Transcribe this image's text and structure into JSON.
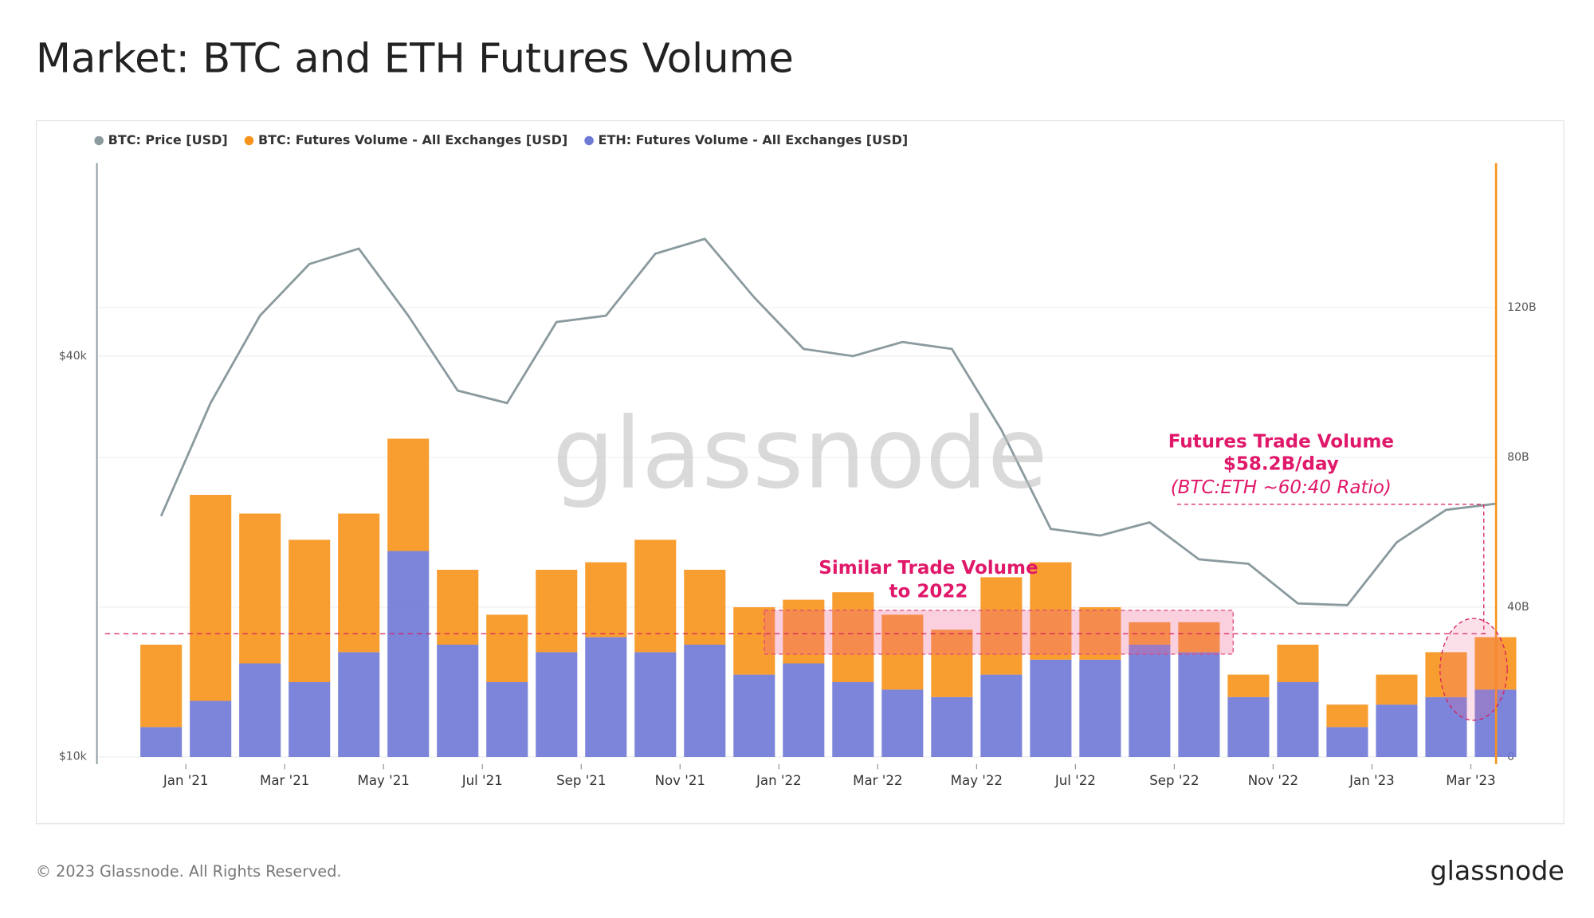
{
  "chart_data": {
    "type": "bar",
    "title": "Market: BTC and ETH Futures Volume",
    "x": [
      "2020-12",
      "2021-01",
      "2021-02",
      "2021-03",
      "2021-04",
      "2021-05",
      "2021-06",
      "2021-07",
      "2021-08",
      "2021-09",
      "2021-10",
      "2021-11",
      "2021-12",
      "2022-01",
      "2022-02",
      "2022-03",
      "2022-04",
      "2022-05",
      "2022-06",
      "2022-07",
      "2022-08",
      "2022-09",
      "2022-10",
      "2022-11",
      "2022-12",
      "2023-01",
      "2023-02",
      "2023-03"
    ],
    "xticks": [
      {
        "value": "2021-01",
        "label": "Jan '21"
      },
      {
        "value": "2021-03",
        "label": "Mar '21"
      },
      {
        "value": "2021-05",
        "label": "May '21"
      },
      {
        "value": "2021-07",
        "label": "Jul '21"
      },
      {
        "value": "2021-09",
        "label": "Sep '21"
      },
      {
        "value": "2021-11",
        "label": "Nov '21"
      },
      {
        "value": "2022-01",
        "label": "Jan '22"
      },
      {
        "value": "2022-03",
        "label": "Mar '22"
      },
      {
        "value": "2022-05",
        "label": "May '22"
      },
      {
        "value": "2022-07",
        "label": "Jul '22"
      },
      {
        "value": "2022-09",
        "label": "Sep '22"
      },
      {
        "value": "2022-11",
        "label": "Nov '22"
      },
      {
        "value": "2023-01",
        "label": "Jan '23"
      },
      {
        "value": "2023-03",
        "label": "Mar '23"
      }
    ],
    "ylim": [
      9750,
      78000
    ],
    "yscale": "log",
    "yticks": [
      {
        "value": 10000,
        "label": "$10k"
      },
      {
        "value": 40000,
        "label": "$40k"
      }
    ],
    "y2lim": [
      -1.9,
      158.6
    ],
    "y2ticks": [
      {
        "value": 0,
        "label": "0"
      },
      {
        "value": 40,
        "label": "40B"
      },
      {
        "value": 80,
        "label": "80B"
      },
      {
        "value": 120,
        "label": "120B"
      }
    ],
    "series": [
      {
        "name": "BTC: Price [USD]",
        "type": "line",
        "color": "#8a9a9e",
        "values": [
          23000,
          34000,
          46000,
          55000,
          58000,
          46000,
          35500,
          34000,
          45000,
          46000,
          57000,
          60000,
          49000,
          41000,
          40000,
          42000,
          41000,
          31000,
          22000,
          21500,
          22500,
          19800,
          19500,
          17000,
          16900,
          21000,
          23500,
          24000
        ]
      },
      {
        "name": "BTC: Futures Volume - All Exchanges [USD]",
        "type": "bar",
        "axis": "y2",
        "color": "#f7931a",
        "values": [
          22,
          55,
          40,
          38,
          37,
          30,
          20,
          18,
          22,
          20,
          30,
          20,
          18,
          17,
          24,
          20,
          18,
          26,
          26,
          14,
          6,
          8,
          6,
          10,
          6,
          8,
          12,
          14
        ]
      },
      {
        "name": "ETH: Futures Volume - All Exchanges [USD]",
        "type": "bar",
        "axis": "y2",
        "color": "#6e78d6",
        "values": [
          8,
          15,
          25,
          20,
          28,
          55,
          30,
          20,
          28,
          32,
          28,
          30,
          22,
          25,
          20,
          18,
          16,
          22,
          26,
          26,
          30,
          28,
          16,
          20,
          8,
          14,
          16,
          18
        ]
      }
    ],
    "annotations": [
      "Similar Trade Volume",
      "to 2022",
      "Futures Trade Volume",
      "$58.2B/day",
      "(BTC:ETH ~60:40 Ratio)"
    ],
    "watermark": "glassnode",
    "footer": "© 2023 Glassnode. All Rights Reserved.",
    "logo": "glassnode"
  }
}
